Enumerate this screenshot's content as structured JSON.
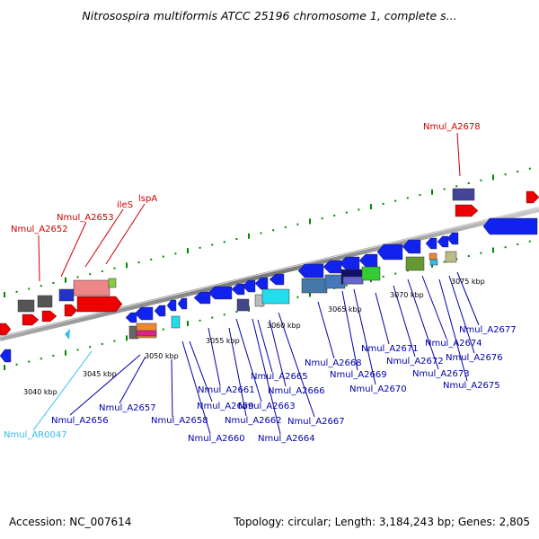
{
  "title": "Nitrosospira multiformis ATCC 25196 chromosome 1, complete s...",
  "footer": {
    "accession": "Accession: NC_007614",
    "summary": "Topology: circular; Length: 3,184,243 bp; Genes: 2,805"
  },
  "colors": {
    "forward_label": "#cc0000",
    "reverse_label": "#0000aa",
    "rna_label": "#33bbee",
    "tick": "#008800",
    "backbone": "#888888"
  },
  "scale_labels": [
    "3040 kbp",
    "3045 kbp",
    "3050 kbp",
    "3055 kbp",
    "3060 kbp",
    "3065 kbp",
    "3070 kbp",
    "3075 kbp"
  ],
  "gene_labels": {
    "forward": [
      "Nmul_A2652",
      "Nmul_A2653",
      "ileS",
      "lspA",
      "Nmul_A2678"
    ],
    "reverse": [
      "Nmul_A2656",
      "Nmul_A2657",
      "Nmul_A2658",
      "Nmul_A2659",
      "Nmul_A2660",
      "Nmul_A2661",
      "Nmul_A2662",
      "Nmul_A2663",
      "Nmul_A2664",
      "Nmul_A2665",
      "Nmul_A2666",
      "Nmul_A2667",
      "Nmul_A2668",
      "Nmul_A2669",
      "Nmul_A2670",
      "Nmul_A2671",
      "Nmul_A2672",
      "Nmul_A2673",
      "Nmul_A2674",
      "Nmul_A2675",
      "Nmul_A2676",
      "Nmul_A2677"
    ],
    "rna": [
      "Nmul_AR0047"
    ]
  }
}
